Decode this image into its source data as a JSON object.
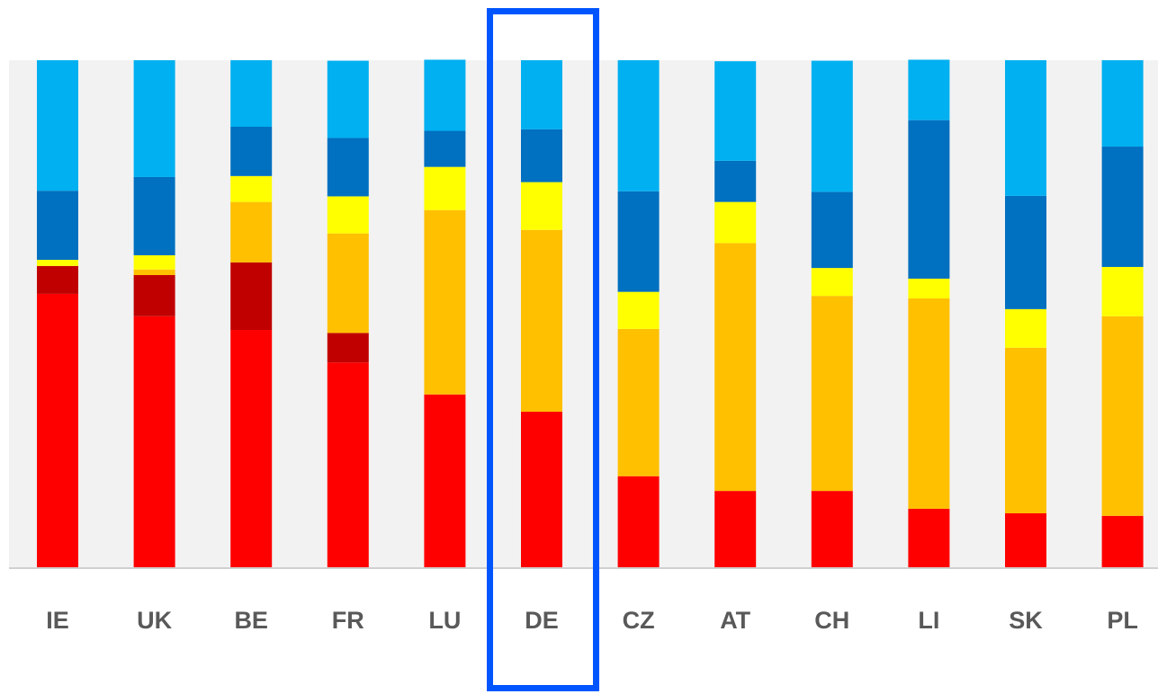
{
  "chart_data": {
    "type": "bar",
    "stacked": true,
    "categories": [
      "IE",
      "UK",
      "BE",
      "FR",
      "LU",
      "DE",
      "CZ",
      "AT",
      "CH",
      "LI",
      "SK",
      "PL"
    ],
    "series": [
      {
        "color": "#ff0000",
        "values": [
          54.0,
          49.6,
          46.9,
          40.5,
          34.2,
          30.8,
          18.1,
          15.2,
          15.2,
          11.7,
          10.8,
          10.3
        ]
      },
      {
        "color": "#c00000",
        "values": [
          5.5,
          8.1,
          13.3,
          5.8,
          0,
          0,
          0,
          0,
          0,
          0,
          0,
          0
        ]
      },
      {
        "color": "#ffc000",
        "values": [
          0,
          1.1,
          11.9,
          19.6,
          36.3,
          35.8,
          29.0,
          48.8,
          38.4,
          41.4,
          32.6,
          39.3
        ]
      },
      {
        "color": "#ffff00",
        "values": [
          1.2,
          2.8,
          5.1,
          7.3,
          8.5,
          9.4,
          7.3,
          8.1,
          5.5,
          3.9,
          7.6,
          9.7
        ]
      },
      {
        "color": "#0070c0",
        "values": [
          13.6,
          15.4,
          9.7,
          11.5,
          7.1,
          10.4,
          19.8,
          8.1,
          15.0,
          31.2,
          22.3,
          23.7
        ]
      },
      {
        "color": "#00b0f0",
        "values": [
          25.7,
          23.0,
          13.1,
          15.2,
          14.0,
          13.6,
          25.8,
          19.6,
          25.8,
          11.9,
          26.7,
          17.0
        ]
      }
    ],
    "ylim": [
      0,
      100
    ]
  }
}
